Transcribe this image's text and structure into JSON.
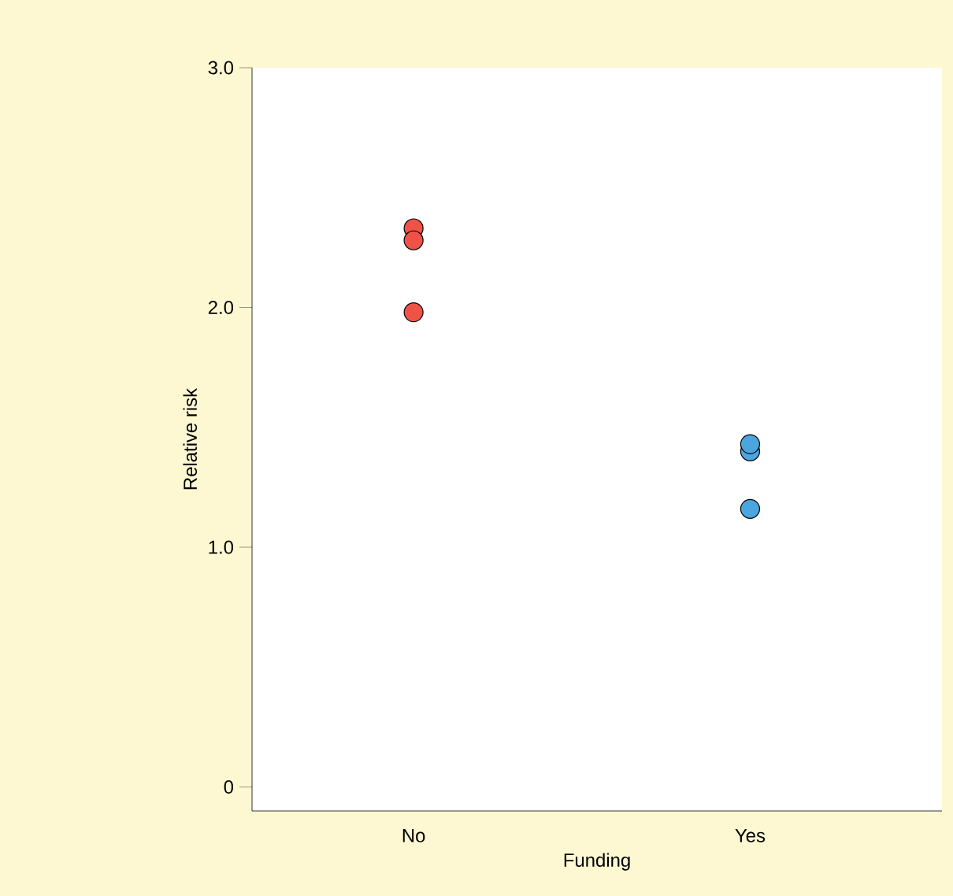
{
  "chart_data": {
    "type": "scatter",
    "xlabel": "Funding",
    "ylabel": "Relative risk",
    "categories": [
      "No",
      "Yes"
    ],
    "ylim": [
      -0.1,
      3.0
    ],
    "yticks": [
      0,
      {
        "value": 1,
        "label": "1.0"
      },
      {
        "value": 2,
        "label": "2.0"
      },
      {
        "value": 3,
        "label": "3.0"
      }
    ],
    "series": [
      {
        "color": "#ef5347",
        "x": [
          "No",
          "No",
          "No"
        ],
        "values": [
          2.33,
          1.98,
          2.28
        ]
      },
      {
        "color": "#4ba6df",
        "x": [
          "Yes",
          "Yes",
          "Yes"
        ],
        "values": [
          1.4,
          1.16,
          1.43
        ]
      }
    ]
  }
}
